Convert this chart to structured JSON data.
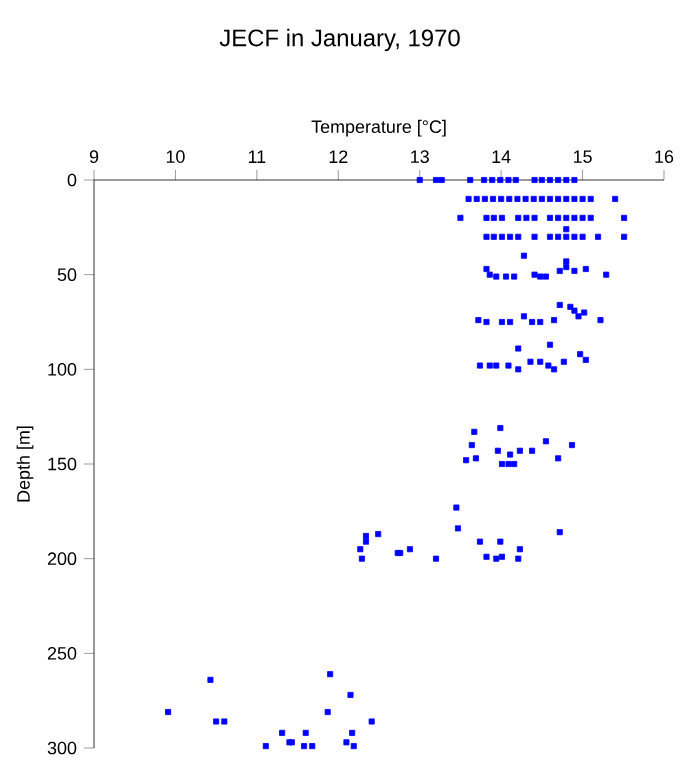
{
  "chart_data": {
    "type": "scatter",
    "title": "JECF in January, 1970",
    "xlabel": "Temperature [°C]",
    "ylabel": "Depth [m]",
    "xlim": [
      9,
      16
    ],
    "xticks": [
      9,
      10,
      11,
      12,
      13,
      14,
      15,
      16
    ],
    "ylim": [
      300,
      0
    ],
    "yticks": [
      0,
      50,
      100,
      150,
      200,
      250,
      300
    ],
    "marker": "square",
    "series": [
      {
        "color": "#0000ff",
        "x": [
          13.0,
          13.2,
          13.27,
          13.62,
          13.79,
          13.89,
          13.99,
          14.09,
          14.18,
          14.41,
          14.5,
          14.6,
          14.7,
          14.8,
          14.9,
          13.6,
          13.7,
          13.8,
          13.9,
          14.0,
          14.1,
          14.2,
          14.3,
          14.4,
          14.5,
          14.6,
          14.7,
          14.8,
          14.9,
          15.0,
          15.1,
          15.4,
          13.5,
          13.82,
          13.91,
          14.01,
          14.21,
          14.31,
          14.41,
          14.6,
          14.7,
          14.8,
          14.9,
          15.0,
          15.1,
          15.51,
          13.82,
          13.91,
          14.01,
          14.11,
          14.21,
          14.41,
          14.6,
          14.7,
          14.8,
          14.9,
          15.0,
          15.19,
          15.51,
          14.8,
          14.28,
          13.82,
          13.86,
          13.94,
          14.06,
          14.16,
          14.41,
          14.48,
          14.55,
          14.72,
          14.8,
          14.9,
          15.04,
          15.29,
          14.8,
          13.72,
          13.82,
          14.01,
          14.11,
          14.28,
          14.38,
          14.48,
          14.65,
          14.72,
          14.85,
          14.9,
          14.95,
          15.02,
          15.22,
          14.21,
          14.6,
          13.74,
          13.86,
          13.94,
          14.09,
          14.21,
          14.36,
          14.48,
          14.58,
          14.65,
          14.77,
          14.97,
          15.04,
          13.67,
          13.99,
          13.64,
          14.55,
          14.87,
          13.96,
          14.23,
          14.38,
          13.57,
          13.69,
          14.11,
          14.7,
          14.01,
          14.09,
          14.16,
          13.45,
          13.47,
          14.72,
          13.74,
          13.99,
          14.23,
          12.76,
          13.2,
          13.82,
          13.94,
          14.01,
          14.21,
          12.34,
          12.49,
          12.34,
          12.27,
          12.29,
          12.73,
          12.88,
          10.43,
          11.9,
          12.15,
          9.91,
          11.87,
          10.5,
          10.6,
          12.41,
          11.31,
          11.6,
          12.17,
          11.4,
          11.43,
          12.1,
          11.11,
          11.58,
          11.68,
          12.19
        ],
        "values": [
          0,
          0,
          0,
          0,
          0,
          0,
          0,
          0,
          0,
          0,
          0,
          0,
          0,
          0,
          0,
          10,
          10,
          10,
          10,
          10,
          10,
          10,
          10,
          10,
          10,
          10,
          10,
          10,
          10,
          10,
          10,
          10,
          20,
          20,
          20,
          20,
          20,
          20,
          20,
          20,
          20,
          20,
          20,
          20,
          20,
          20,
          30,
          30,
          30,
          30,
          30,
          30,
          30,
          30,
          30,
          30,
          30,
          30,
          30,
          26,
          40,
          47,
          50,
          51,
          51,
          51,
          50,
          51,
          51,
          48,
          46,
          48,
          47,
          50,
          43,
          74,
          75,
          75,
          75,
          72,
          75,
          75,
          74,
          66,
          67,
          69,
          72,
          70,
          74,
          89,
          87,
          98,
          98,
          98,
          98,
          100,
          96,
          96,
          98,
          100,
          96,
          92,
          95,
          133,
          131,
          140,
          138,
          140,
          143,
          143,
          143,
          148,
          147,
          145,
          147,
          150,
          150,
          150,
          173,
          184,
          186,
          191,
          191,
          195,
          197,
          200,
          199,
          200,
          199,
          200,
          188,
          187,
          191,
          195,
          200,
          197,
          195,
          264,
          261,
          272,
          281,
          281,
          286,
          286,
          286,
          292,
          292,
          292,
          297,
          297,
          297,
          299,
          299,
          299,
          299
        ]
      }
    ]
  }
}
